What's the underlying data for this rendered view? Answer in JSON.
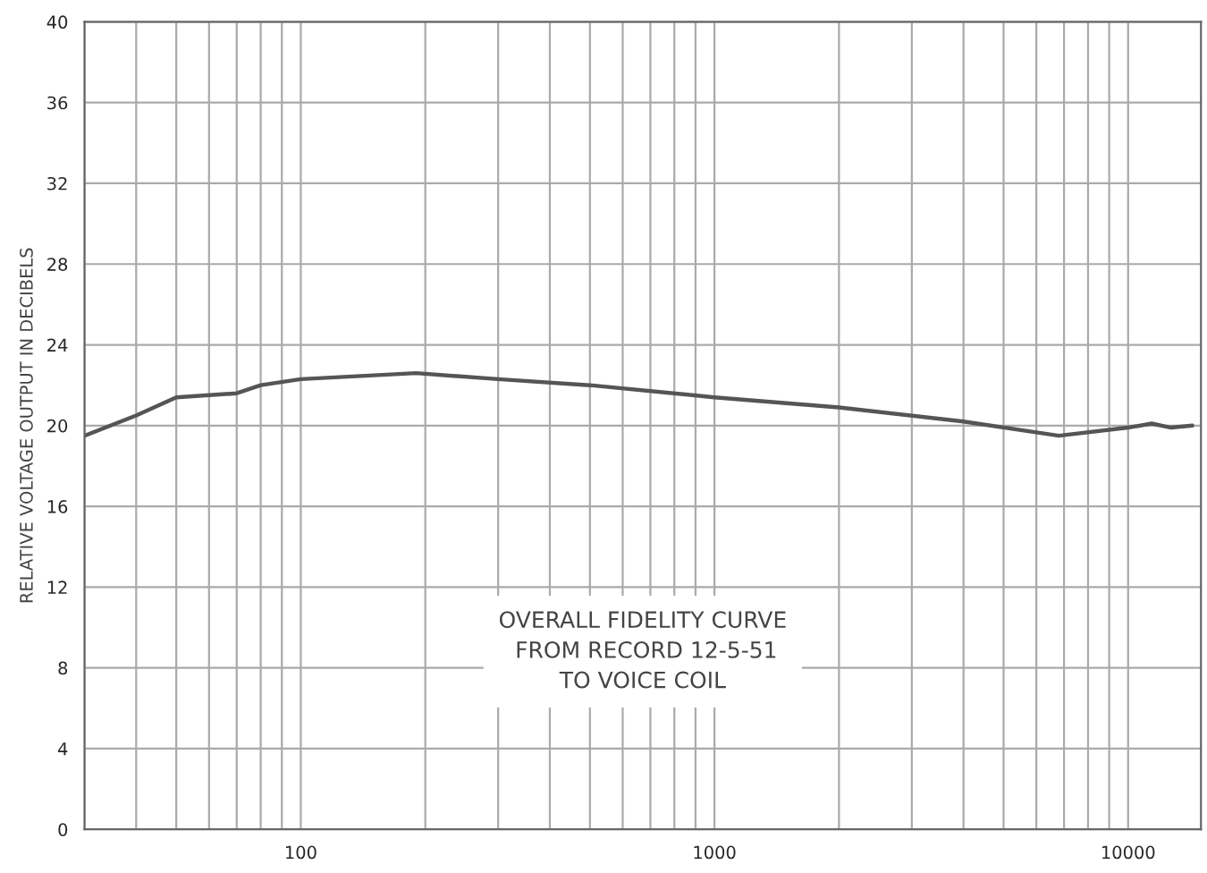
{
  "chart_data": {
    "type": "line",
    "ylabel": "RELATIVE VOLTAGE OUTPUT IN DECIBELS",
    "annotations": [
      "OVERALL FIDELITY CURVE\n FROM RECORD 12-5-51\nTO VOICE COIL"
    ],
    "log": "x",
    "x": [
      30,
      40,
      50,
      70,
      80,
      100,
      190,
      300,
      500,
      1000,
      2000,
      4000,
      6800,
      10000,
      11400,
      12700,
      14300
    ],
    "series": [
      {
        "color": "#555555",
        "values": [
          19.5,
          20.5,
          21.4,
          21.6,
          22.0,
          22.3,
          22.6,
          22.3,
          22.0,
          21.4,
          20.9,
          20.2,
          19.5,
          19.9,
          20.1,
          19.9,
          20.0
        ]
      }
    ],
    "xlim": [
      30,
      15000
    ],
    "xticks": [
      {
        "value": 30,
        "label": null
      },
      {
        "value": 40,
        "label": null
      },
      {
        "value": 50,
        "label": null
      },
      {
        "value": 60,
        "label": null
      },
      {
        "value": 70,
        "label": null
      },
      {
        "value": 80,
        "label": null
      },
      {
        "value": 90,
        "label": null
      },
      100,
      {
        "value": 200,
        "label": null
      },
      {
        "value": 300,
        "label": null
      },
      {
        "value": 400,
        "label": null
      },
      {
        "value": 500,
        "label": null
      },
      {
        "value": 600,
        "label": null
      },
      {
        "value": 700,
        "label": null
      },
      {
        "value": 800,
        "label": null
      },
      {
        "value": 900,
        "label": null
      },
      1000,
      {
        "value": 2000,
        "label": null
      },
      {
        "value": 3000,
        "label": null
      },
      {
        "value": 4000,
        "label": null
      },
      {
        "value": 5000,
        "label": null
      },
      {
        "value": 6000,
        "label": null
      },
      {
        "value": 7000,
        "label": null
      },
      {
        "value": 8000,
        "label": null
      },
      {
        "value": 9000,
        "label": null
      },
      10000
    ],
    "ylim": [
      0,
      40
    ],
    "yticks": [
      0,
      4,
      8,
      12,
      16,
      20,
      24,
      28,
      32,
      36,
      40
    ],
    "grid": true,
    "line_style": "solid"
  }
}
